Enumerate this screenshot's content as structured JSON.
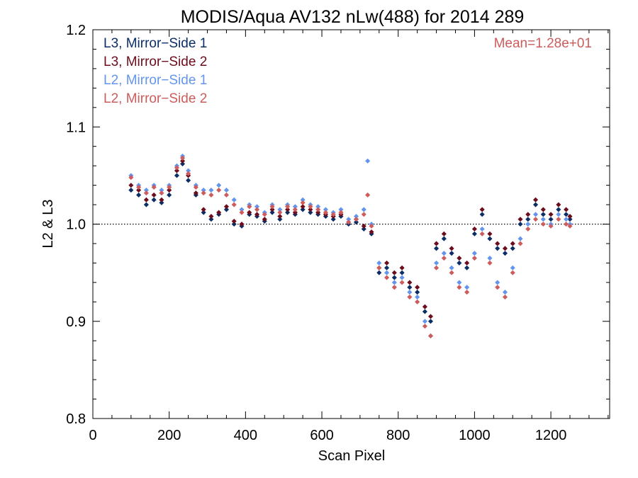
{
  "chart_data": {
    "type": "scatter",
    "title": "MODIS/Aqua AV132 nLw(488) for 2014 289",
    "xlabel": "Scan Pixel",
    "ylabel": "L2 & L3",
    "xlim": [
      0,
      1354
    ],
    "ylim": [
      0.8,
      1.2
    ],
    "xticks": [
      0,
      200,
      400,
      600,
      800,
      1000,
      1200
    ],
    "xtick_labels": [
      "0",
      "200",
      "400",
      "600",
      "800",
      "1000",
      "1200"
    ],
    "yticks": [
      0.8,
      0.9,
      1.0,
      1.1,
      1.2
    ],
    "ytick_labels": [
      "0.8",
      "0.9",
      "1.0",
      "1.1",
      "1.2"
    ],
    "reference_line": 1.0,
    "annotation": "Mean=1.28e+01",
    "annotation_color": "#cd5c5c",
    "legend_position": "top-left",
    "series": [
      {
        "name": "L3, Mirror−Side 1",
        "color": "#0b2e66",
        "x": [
          100,
          120,
          140,
          160,
          180,
          200,
          220,
          235,
          250,
          270,
          290,
          310,
          330,
          350,
          370,
          390,
          410,
          430,
          450,
          470,
          490,
          510,
          530,
          550,
          570,
          590,
          610,
          630,
          650,
          670,
          690,
          710,
          730,
          750,
          770,
          790,
          810,
          830,
          850,
          870,
          885,
          900,
          920,
          940,
          960,
          980,
          1000,
          1020,
          1040,
          1060,
          1080,
          1100,
          1120,
          1140,
          1160,
          1180,
          1200,
          1220,
          1240,
          1250
        ],
        "y": [
          1.035,
          1.03,
          1.02,
          1.025,
          1.022,
          1.03,
          1.05,
          1.062,
          1.045,
          1.03,
          1.012,
          1.005,
          1.01,
          1.015,
          1.0,
          0.998,
          1.01,
          1.008,
          1.003,
          1.012,
          1.005,
          1.012,
          1.01,
          1.015,
          1.012,
          1.01,
          1.008,
          1.005,
          1.008,
          1.0,
          1.002,
          0.995,
          0.99,
          0.95,
          0.955,
          0.945,
          0.95,
          0.935,
          0.93,
          0.91,
          0.9,
          0.975,
          0.985,
          0.97,
          0.96,
          0.955,
          0.99,
          1.01,
          0.985,
          0.975,
          0.97,
          0.975,
          1.0,
          1.005,
          1.02,
          1.01,
          1.005,
          1.015,
          1.01,
          1.005
        ]
      },
      {
        "name": "L3, Mirror−Side 2",
        "color": "#6b0d1c",
        "x": [
          100,
          120,
          140,
          160,
          180,
          200,
          220,
          235,
          250,
          270,
          290,
          310,
          330,
          350,
          370,
          390,
          410,
          430,
          450,
          470,
          490,
          510,
          530,
          550,
          570,
          590,
          610,
          630,
          650,
          670,
          690,
          710,
          730,
          750,
          770,
          790,
          810,
          830,
          850,
          870,
          885,
          900,
          920,
          940,
          960,
          980,
          1000,
          1020,
          1040,
          1060,
          1080,
          1100,
          1120,
          1140,
          1160,
          1180,
          1200,
          1220,
          1240,
          1250
        ],
        "y": [
          1.04,
          1.035,
          1.025,
          1.03,
          1.025,
          1.035,
          1.055,
          1.065,
          1.05,
          1.032,
          1.015,
          1.008,
          1.012,
          1.018,
          1.003,
          1.0,
          1.012,
          1.01,
          1.005,
          1.015,
          1.008,
          1.015,
          1.012,
          1.018,
          1.015,
          1.012,
          1.01,
          1.008,
          1.01,
          1.002,
          1.005,
          0.998,
          0.992,
          0.955,
          0.96,
          0.95,
          0.955,
          0.94,
          0.935,
          0.915,
          0.905,
          0.98,
          0.99,
          0.975,
          0.965,
          0.96,
          0.995,
          1.015,
          0.99,
          0.98,
          0.975,
          0.98,
          1.005,
          1.01,
          1.025,
          1.015,
          1.01,
          1.02,
          1.015,
          1.008
        ]
      },
      {
        "name": "L2, Mirror−Side 1",
        "color": "#6495ed",
        "x": [
          100,
          120,
          140,
          160,
          180,
          200,
          220,
          235,
          250,
          270,
          290,
          310,
          330,
          350,
          370,
          390,
          410,
          430,
          450,
          470,
          490,
          510,
          530,
          550,
          570,
          590,
          610,
          630,
          650,
          670,
          690,
          710,
          720,
          730,
          750,
          770,
          790,
          810,
          830,
          850,
          870,
          885,
          900,
          920,
          940,
          960,
          980,
          1000,
          1020,
          1040,
          1060,
          1080,
          1100,
          1120,
          1140,
          1160,
          1180,
          1200,
          1220,
          1240,
          1250
        ],
        "y": [
          1.05,
          1.04,
          1.035,
          1.04,
          1.035,
          1.04,
          1.06,
          1.07,
          1.055,
          1.04,
          1.035,
          1.035,
          1.04,
          1.035,
          1.025,
          1.015,
          1.02,
          1.018,
          1.012,
          1.02,
          1.015,
          1.02,
          1.018,
          1.025,
          1.02,
          1.018,
          1.015,
          1.012,
          1.015,
          1.005,
          1.008,
          1.015,
          1.065,
          1.0,
          0.96,
          0.95,
          0.94,
          0.945,
          0.93,
          0.925,
          0.9,
          0.885,
          0.96,
          0.97,
          0.955,
          0.94,
          0.935,
          0.97,
          0.995,
          0.965,
          0.94,
          0.93,
          0.955,
          0.985,
          1.0,
          1.01,
          1.005,
          1.0,
          1.01,
          1.005,
          1.0
        ]
      },
      {
        "name": "L2, Mirror−Side 2",
        "color": "#cd5c5c",
        "x": [
          100,
          120,
          140,
          160,
          180,
          200,
          220,
          235,
          250,
          270,
          290,
          310,
          330,
          350,
          370,
          390,
          410,
          430,
          450,
          470,
          490,
          510,
          530,
          550,
          570,
          590,
          610,
          630,
          650,
          670,
          690,
          710,
          720,
          730,
          750,
          770,
          790,
          810,
          830,
          850,
          870,
          885,
          900,
          920,
          940,
          960,
          980,
          1000,
          1020,
          1040,
          1060,
          1080,
          1100,
          1120,
          1140,
          1160,
          1180,
          1200,
          1220,
          1240,
          1250
        ],
        "y": [
          1.048,
          1.038,
          1.032,
          1.038,
          1.032,
          1.038,
          1.058,
          1.068,
          1.052,
          1.038,
          1.032,
          1.03,
          1.035,
          1.03,
          1.02,
          1.012,
          1.018,
          1.015,
          1.01,
          1.018,
          1.012,
          1.018,
          1.015,
          1.022,
          1.018,
          1.015,
          1.012,
          1.01,
          1.012,
          1.002,
          1.005,
          1.01,
          1.03,
          0.998,
          0.955,
          0.945,
          0.935,
          0.94,
          0.925,
          0.92,
          0.895,
          0.885,
          0.955,
          0.965,
          0.95,
          0.935,
          0.93,
          0.965,
          0.99,
          0.96,
          0.935,
          0.925,
          0.95,
          0.98,
          0.995,
          1.005,
          1.0,
          0.998,
          1.005,
          1.0,
          0.998
        ]
      }
    ]
  }
}
